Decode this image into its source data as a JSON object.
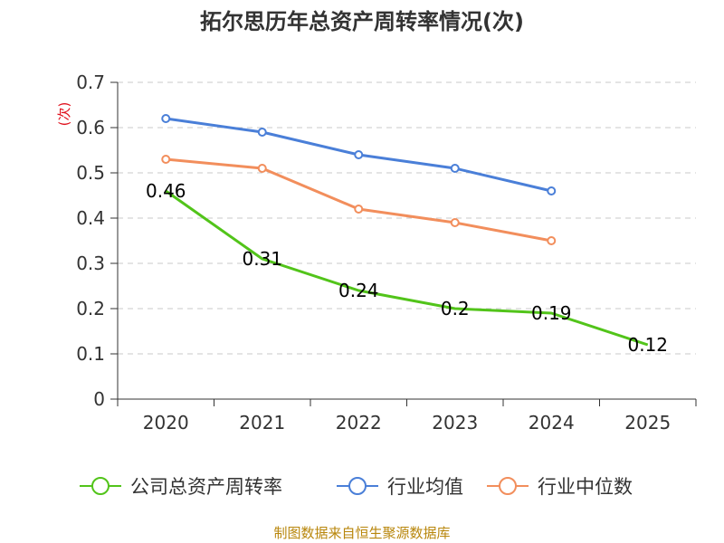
{
  "chart_data": {
    "type": "line",
    "title": "拓尔思历年总资产周转率情况(次)",
    "ylabel": "(次)",
    "xlabel": "",
    "categories": [
      "2020",
      "2021",
      "2022",
      "2023",
      "2024",
      "2025"
    ],
    "ylim": [
      0,
      0.7
    ],
    "yticks": [
      "0",
      "0.1",
      "0.2",
      "0.3",
      "0.4",
      "0.5",
      "0.6",
      "0.7"
    ],
    "grid": true,
    "legend_position": "bottom",
    "series": [
      {
        "name": "公司总资产周转率",
        "color": "#52c41a",
        "values": [
          0.46,
          0.31,
          0.24,
          0.2,
          0.19,
          0.12
        ],
        "labels": [
          "0.46",
          "0.31",
          "0.24",
          "0.2",
          "0.19",
          "0.12"
        ],
        "show_labels": true,
        "show_markers": false
      },
      {
        "name": "行业均值",
        "color": "#4a7fd8",
        "values": [
          0.62,
          0.59,
          0.54,
          0.51,
          0.46,
          null
        ],
        "show_labels": false,
        "show_markers": true
      },
      {
        "name": "行业中位数",
        "color": "#f28e5c",
        "values": [
          0.53,
          0.51,
          0.42,
          0.39,
          0.35,
          null
        ],
        "show_labels": false,
        "show_markers": true
      }
    ]
  },
  "source": "制图数据来自恒生聚源数据库"
}
